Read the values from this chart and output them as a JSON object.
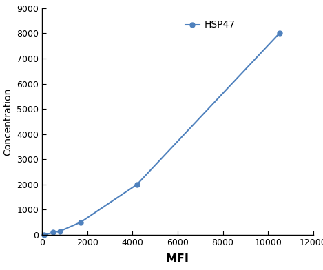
{
  "x": [
    100,
    500,
    800,
    1700,
    4200,
    10500
  ],
  "y": [
    0,
    100,
    150,
    500,
    2000,
    8000
  ],
  "line_color": "#4f81bd",
  "marker": "o",
  "marker_size": 5,
  "legend_label": "HSP47",
  "xlabel": "MFI",
  "ylabel": "Concentration",
  "xlim": [
    0,
    12000
  ],
  "ylim": [
    0,
    9000
  ],
  "xticks": [
    0,
    2000,
    4000,
    6000,
    8000,
    10000,
    12000
  ],
  "yticks": [
    0,
    1000,
    2000,
    3000,
    4000,
    5000,
    6000,
    7000,
    8000,
    9000
  ],
  "xlabel_fontsize": 12,
  "ylabel_fontsize": 10,
  "tick_fontsize": 9,
  "legend_fontsize": 10,
  "background_color": "#ffffff"
}
